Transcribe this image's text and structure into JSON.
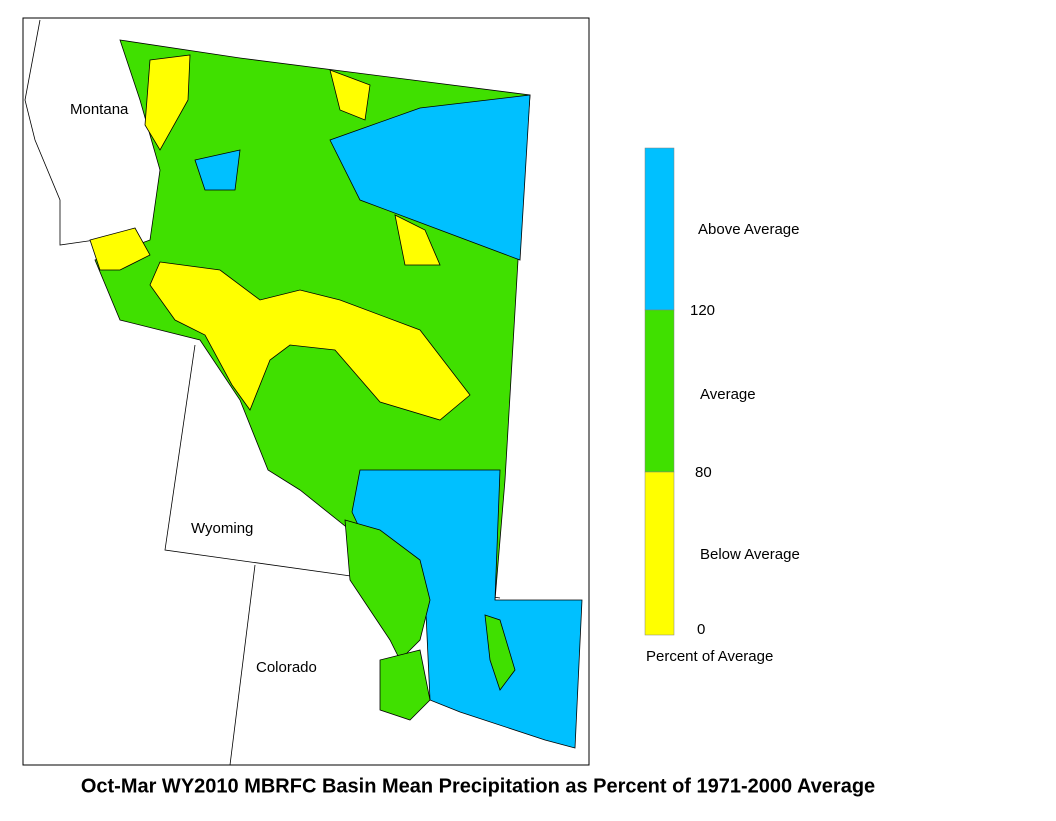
{
  "map": {
    "labels": [
      "Montana",
      "Wyoming",
      "Colorado"
    ],
    "legend": {
      "classes": [
        {
          "label": "Above Average",
          "color": "#00c0ff"
        },
        {
          "label": "Average",
          "color": "#40e000"
        },
        {
          "label": "Below Average",
          "color": "#ffff00"
        }
      ],
      "ticks": [
        "120",
        "80",
        "0"
      ],
      "title": "Percent of Average"
    },
    "title": "Oct-Mar WY2010 MBRFC Basin Mean Precipitation as Percent of 1971-2000 Average"
  }
}
